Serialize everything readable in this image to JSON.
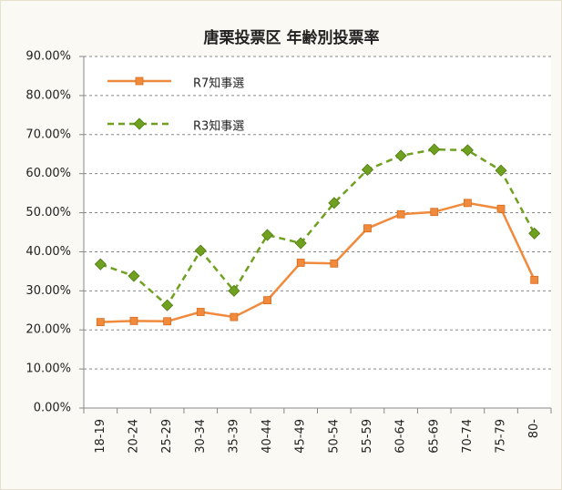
{
  "chart_data": {
    "type": "line",
    "title": "唐栗投票区 年齢別投票率",
    "categories": [
      "18-19",
      "20-24",
      "25-29",
      "30-34",
      "35-39",
      "40-44",
      "45-49",
      "50-54",
      "55-59",
      "60-64",
      "65-69",
      "70-74",
      "75-79",
      "80-"
    ],
    "series": [
      {
        "name": "R7知事選",
        "color": "#f08a3c",
        "marker": "square",
        "dashed": false,
        "values": [
          22.0,
          22.3,
          22.2,
          24.6,
          23.3,
          27.6,
          37.2,
          37.0,
          46.0,
          49.6,
          50.2,
          52.5,
          51.0,
          32.8
        ]
      },
      {
        "name": "R3知事選",
        "color": "#6fa020",
        "marker": "diamond",
        "dashed": true,
        "values": [
          36.8,
          33.8,
          26.3,
          40.3,
          30.0,
          44.3,
          42.2,
          52.5,
          61.0,
          64.6,
          66.2,
          66.0,
          60.8,
          44.7
        ]
      }
    ],
    "ylim": [
      0,
      90
    ],
    "yticks": [
      {
        "value": 0,
        "label": "0.00%"
      },
      {
        "value": 10,
        "label": "10.00%"
      },
      {
        "value": 20,
        "label": "20.00%"
      },
      {
        "value": 30,
        "label": "30.00%"
      },
      {
        "value": 40,
        "label": "40.00%"
      },
      {
        "value": 50,
        "label": "50.00%"
      },
      {
        "value": 60,
        "label": "60.00%"
      },
      {
        "value": 70,
        "label": "70.00%"
      },
      {
        "value": 80,
        "label": "80.00%"
      },
      {
        "value": 90,
        "label": "90.00%"
      }
    ],
    "grid": true,
    "legend": "upper-left"
  }
}
